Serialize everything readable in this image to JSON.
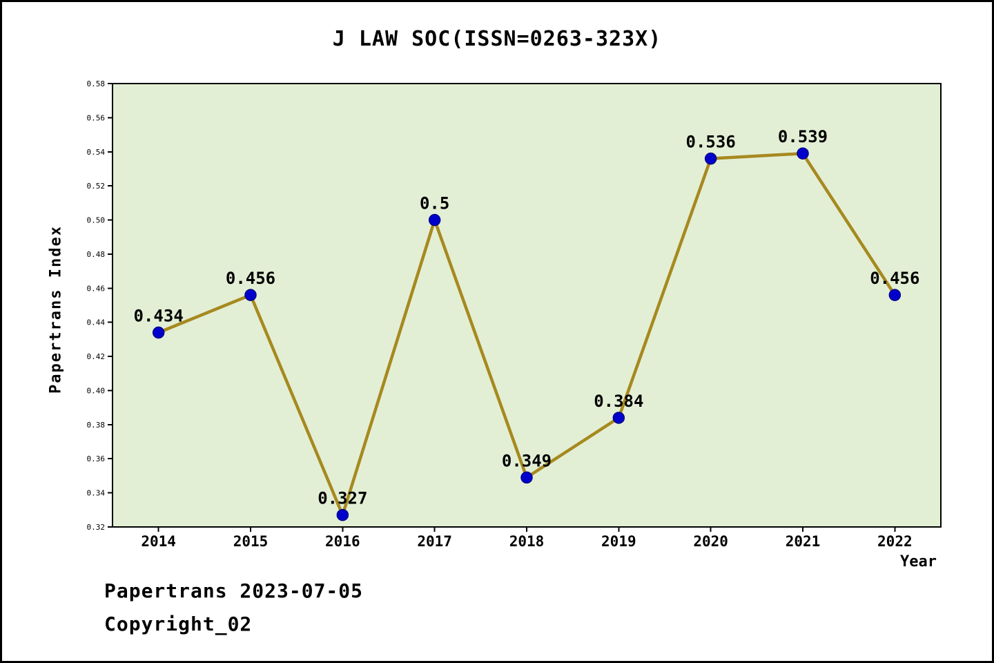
{
  "title": "J LAW SOC(ISSN=0263-323X)",
  "footer": {
    "line1": "Papertrans 2023-07-05",
    "line2": "Copyright_02"
  },
  "chart_data": {
    "type": "line",
    "title": "J LAW SOC(ISSN=0263-323X)",
    "xlabel": "Year",
    "ylabel": "Papertrans Index",
    "categories": [
      "2014",
      "2015",
      "2016",
      "2017",
      "2018",
      "2019",
      "2020",
      "2021",
      "2022"
    ],
    "values": [
      0.434,
      0.456,
      0.327,
      0.5,
      0.349,
      0.384,
      0.536,
      0.539,
      0.456
    ],
    "ylim": [
      0.32,
      0.58
    ],
    "ytick_step": 0.02,
    "grid": false,
    "legend": null,
    "colors": {
      "plot_bg": "#e3efd5",
      "line": "#a6891f",
      "marker_fill": "#0000cd",
      "marker_edge": "#00008b",
      "axis": "#000000",
      "text": "#000000",
      "page_bg": "#ffffff"
    }
  }
}
